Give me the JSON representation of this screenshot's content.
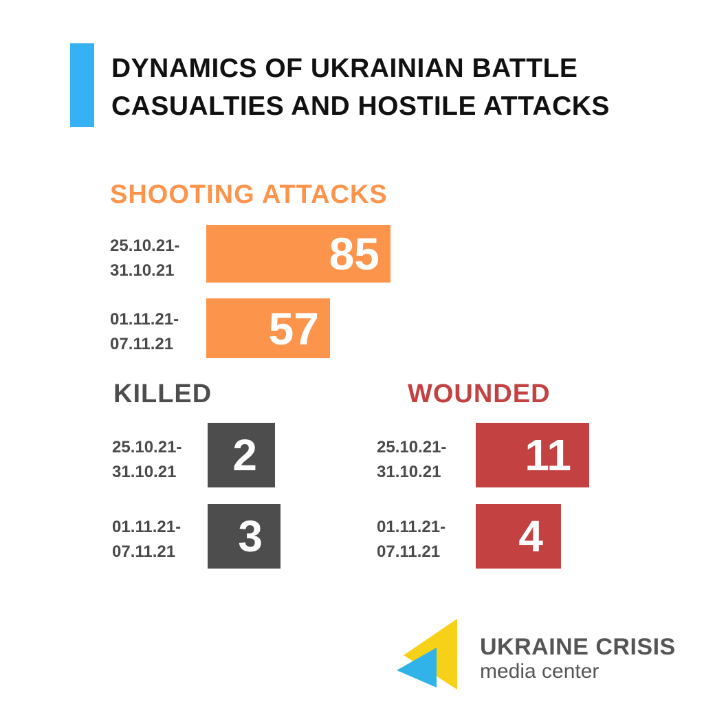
{
  "header": {
    "title_line1": "DYNAMICS OF UKRAINIAN BATTLE",
    "title_line2": "CASUALTIES AND HOSTILE ATTACKS"
  },
  "colors": {
    "accent": "#35b1f4",
    "shooting": "#fc944c",
    "killed": "#4d4d4d",
    "wounded": "#c44142",
    "logo_yellow": "#f7d117",
    "logo_blue": "#2fb3e8"
  },
  "chart_data": [
    {
      "type": "bar",
      "title": "SHOOTING  ATTACKS",
      "categories": [
        [
          "25.10.21-",
          "31.10.21"
        ],
        [
          "01.11.21-",
          "07.11.21"
        ]
      ],
      "values": [
        85,
        57
      ]
    },
    {
      "type": "bar",
      "title": "KILLED",
      "categories": [
        [
          "25.10.21-",
          "31.10.21"
        ],
        [
          "01.11.21-",
          "07.11.21"
        ]
      ],
      "values": [
        2,
        3
      ]
    },
    {
      "type": "bar",
      "title": "WOUNDED",
      "categories": [
        [
          "25.10.21-",
          "31.10.21"
        ],
        [
          "01.11.21-",
          "07.11.21"
        ]
      ],
      "values": [
        11,
        4
      ]
    }
  ],
  "logo": {
    "line1": "UKRAINE CRISIS",
    "line2": "media center"
  }
}
